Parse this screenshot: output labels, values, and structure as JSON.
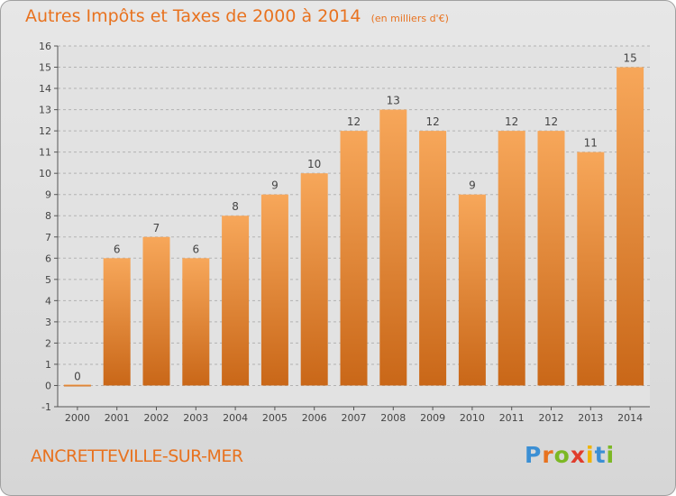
{
  "header": {
    "title": "Autres Impôts et Taxes de 2000 à 2014",
    "unit": "(en milliers d'€)"
  },
  "footer": {
    "commune": "ANCRETTEVILLE-SUR-MER",
    "logo_letters": [
      "P",
      "r",
      "o",
      "x",
      "i",
      "t",
      "i"
    ],
    "logo_colors": [
      "#3b8fd4",
      "#e8721f",
      "#7cb824",
      "#e03c2c",
      "#f0b400",
      "#3b8fd4",
      "#7cb824"
    ]
  },
  "colors": {
    "accent": "#e8721f",
    "bar_top": "#f7a75a",
    "bar_bottom": "#c96718",
    "grid": "#b3b3b3"
  },
  "chart_data": {
    "type": "bar",
    "categories": [
      "2000",
      "2001",
      "2002",
      "2003",
      "2004",
      "2005",
      "2006",
      "2007",
      "2008",
      "2009",
      "2010",
      "2011",
      "2012",
      "2013",
      "2014"
    ],
    "values": [
      0,
      6,
      7,
      6,
      8,
      9,
      10,
      12,
      13,
      12,
      9,
      12,
      12,
      11,
      15
    ],
    "ylim": [
      -1,
      16
    ],
    "yticks": [
      -1,
      0,
      1,
      2,
      3,
      4,
      5,
      6,
      7,
      8,
      9,
      10,
      11,
      12,
      13,
      14,
      15,
      16
    ],
    "grid": "horizontal-dashed",
    "data_labels": true,
    "xlabel": "",
    "ylabel": ""
  }
}
